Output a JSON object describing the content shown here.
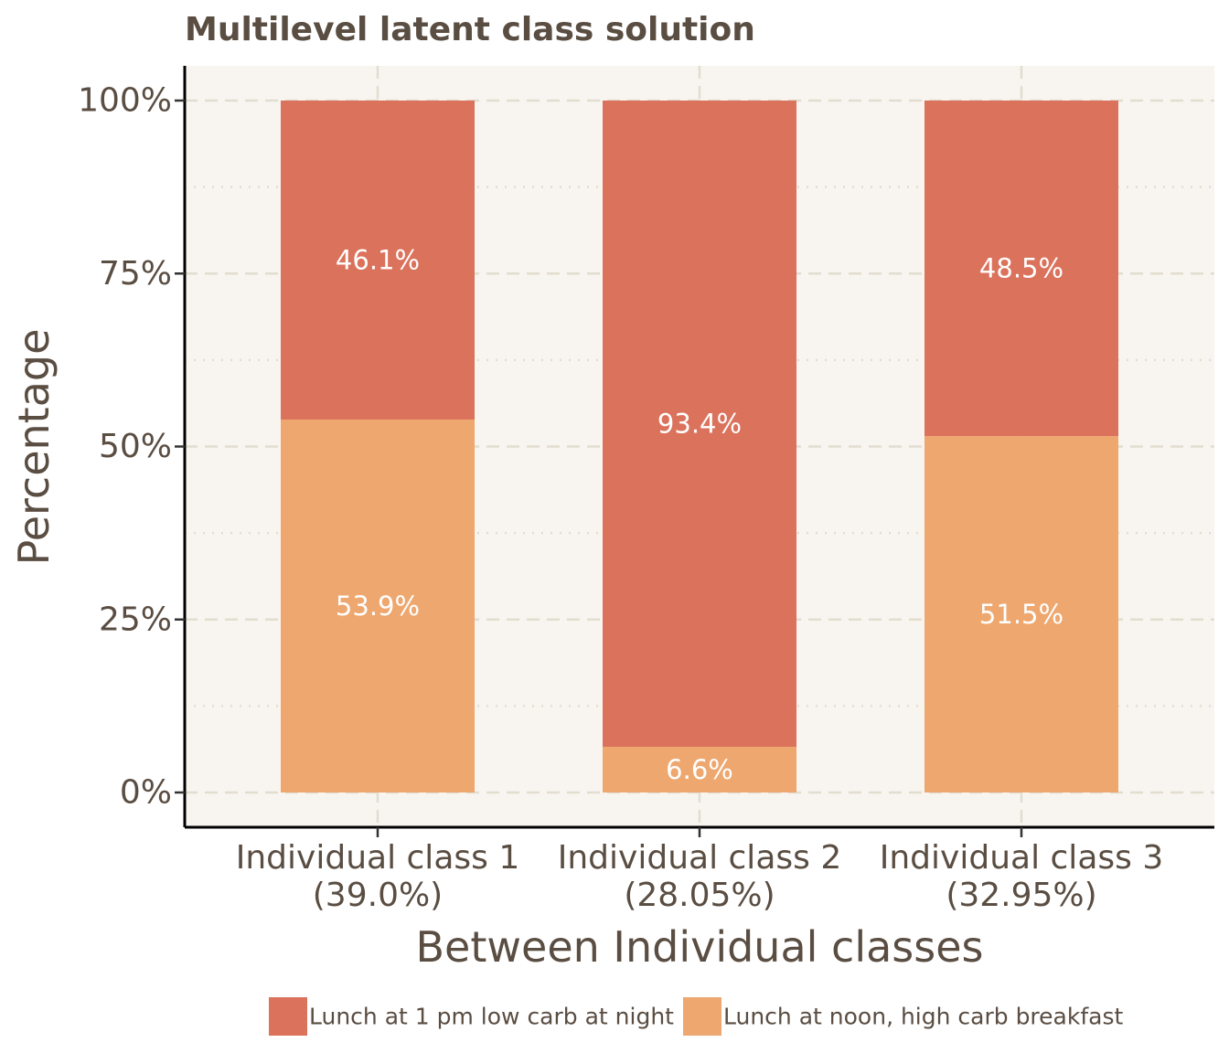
{
  "chart_data": {
    "type": "bar",
    "stacked": true,
    "title": "Multilevel latent class solution",
    "xlabel": "Between Individual classes",
    "ylabel": "Percentage",
    "ylim": [
      0,
      100
    ],
    "y_ticks": [
      "0%",
      "25%",
      "50%",
      "75%",
      "100%"
    ],
    "y_tick_values": [
      0,
      25,
      50,
      75,
      100
    ],
    "categories": [
      [
        "Individual class 1",
        "(39.0%)"
      ],
      [
        "Individual class 2",
        "(28.05%)"
      ],
      [
        "Individual class 3",
        "(32.95%)"
      ]
    ],
    "series": [
      {
        "name": "Lunch at noon, high carb breakfast",
        "values": [
          53.9,
          6.6,
          51.5
        ],
        "labels": [
          "53.9%",
          "6.6%",
          "51.5%"
        ],
        "color": "#eea76e"
      },
      {
        "name": "Lunch at 1 pm low carb at night",
        "values": [
          46.1,
          93.4,
          48.5
        ],
        "labels": [
          "46.1%",
          "93.4%",
          "48.5%"
        ],
        "color": "#db725c"
      }
    ],
    "legend": {
      "position": "bottom",
      "order": [
        "Lunch at 1 pm low carb at night",
        "Lunch at noon, high carb breakfast"
      ]
    },
    "grid": true,
    "colors": {
      "panel_background": "#f8f5f0",
      "grid": "#e3ddd0",
      "text": "#5a4d42",
      "axis": "#000000"
    }
  }
}
